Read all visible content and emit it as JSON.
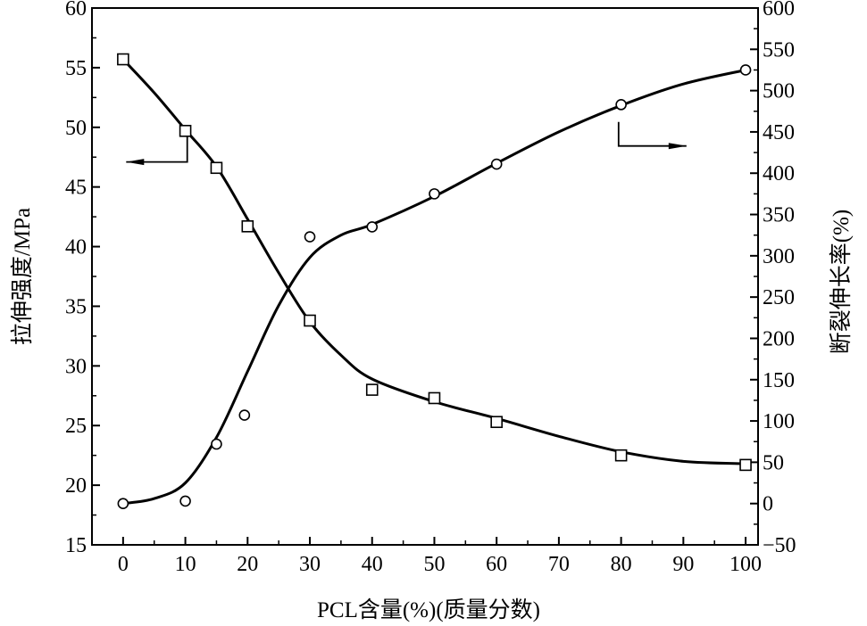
{
  "chart_data": {
    "type": "line",
    "xlabel": "PCL含量(%)(质量分数)",
    "ylabel_left": "拉伸强度/MPa",
    "ylabel_right": "断裂伸长率(%)",
    "xlim": [
      -5,
      102
    ],
    "xticks": [
      0,
      10,
      20,
      30,
      40,
      50,
      60,
      70,
      80,
      90,
      100
    ],
    "ylim_left": [
      15,
      60
    ],
    "yticks_left": [
      15,
      20,
      25,
      30,
      35,
      40,
      45,
      50,
      55,
      60
    ],
    "ylim_right": [
      -50,
      600
    ],
    "yticks_right": [
      -50,
      0,
      50,
      100,
      150,
      200,
      250,
      300,
      350,
      400,
      450,
      500,
      550,
      600
    ],
    "grid": false,
    "series": [
      {
        "axis": "left",
        "marker": "square",
        "points": [
          [
            0,
            55.7
          ],
          [
            10,
            49.7
          ],
          [
            15,
            46.6
          ],
          [
            20,
            41.7
          ],
          [
            30,
            33.8
          ],
          [
            40,
            28.0
          ],
          [
            50,
            27.3
          ],
          [
            60,
            25.3
          ],
          [
            80,
            22.5
          ],
          [
            100,
            21.7
          ]
        ],
        "curve": [
          [
            0,
            55.7
          ],
          [
            5,
            52.9
          ],
          [
            10,
            49.8
          ],
          [
            15,
            46.7
          ],
          [
            20,
            42.3
          ],
          [
            25,
            37.8
          ],
          [
            30,
            33.7
          ],
          [
            35,
            30.9
          ],
          [
            40,
            28.9
          ],
          [
            50,
            27.0
          ],
          [
            60,
            25.6
          ],
          [
            70,
            24.1
          ],
          [
            80,
            22.8
          ],
          [
            90,
            22.0
          ],
          [
            100,
            21.8
          ]
        ]
      },
      {
        "axis": "right",
        "marker": "circle",
        "points": [
          [
            0,
            0
          ],
          [
            10,
            3
          ],
          [
            15,
            72
          ],
          [
            19.5,
            107
          ],
          [
            30,
            323
          ],
          [
            40,
            335
          ],
          [
            50,
            375
          ],
          [
            60,
            411
          ],
          [
            80,
            483
          ],
          [
            100,
            525
          ]
        ],
        "curve": [
          [
            0,
            0
          ],
          [
            5,
            6
          ],
          [
            10,
            25
          ],
          [
            15,
            80
          ],
          [
            20,
            160
          ],
          [
            25,
            240
          ],
          [
            30,
            298
          ],
          [
            35,
            325
          ],
          [
            40,
            338
          ],
          [
            50,
            372
          ],
          [
            60,
            412
          ],
          [
            70,
            450
          ],
          [
            80,
            482
          ],
          [
            90,
            508
          ],
          [
            100,
            525
          ]
        ]
      }
    ],
    "arrows": [
      {
        "points": [
          [
            10.3,
            49.7
          ],
          [
            10.3,
            47.1
          ],
          [
            0.5,
            47.1
          ]
        ],
        "axis": "left",
        "direction": "left"
      },
      {
        "points": [
          [
            79.6,
            462
          ],
          [
            79.6,
            433
          ],
          [
            90.5,
            433
          ]
        ],
        "axis": "right",
        "direction": "right"
      }
    ]
  }
}
